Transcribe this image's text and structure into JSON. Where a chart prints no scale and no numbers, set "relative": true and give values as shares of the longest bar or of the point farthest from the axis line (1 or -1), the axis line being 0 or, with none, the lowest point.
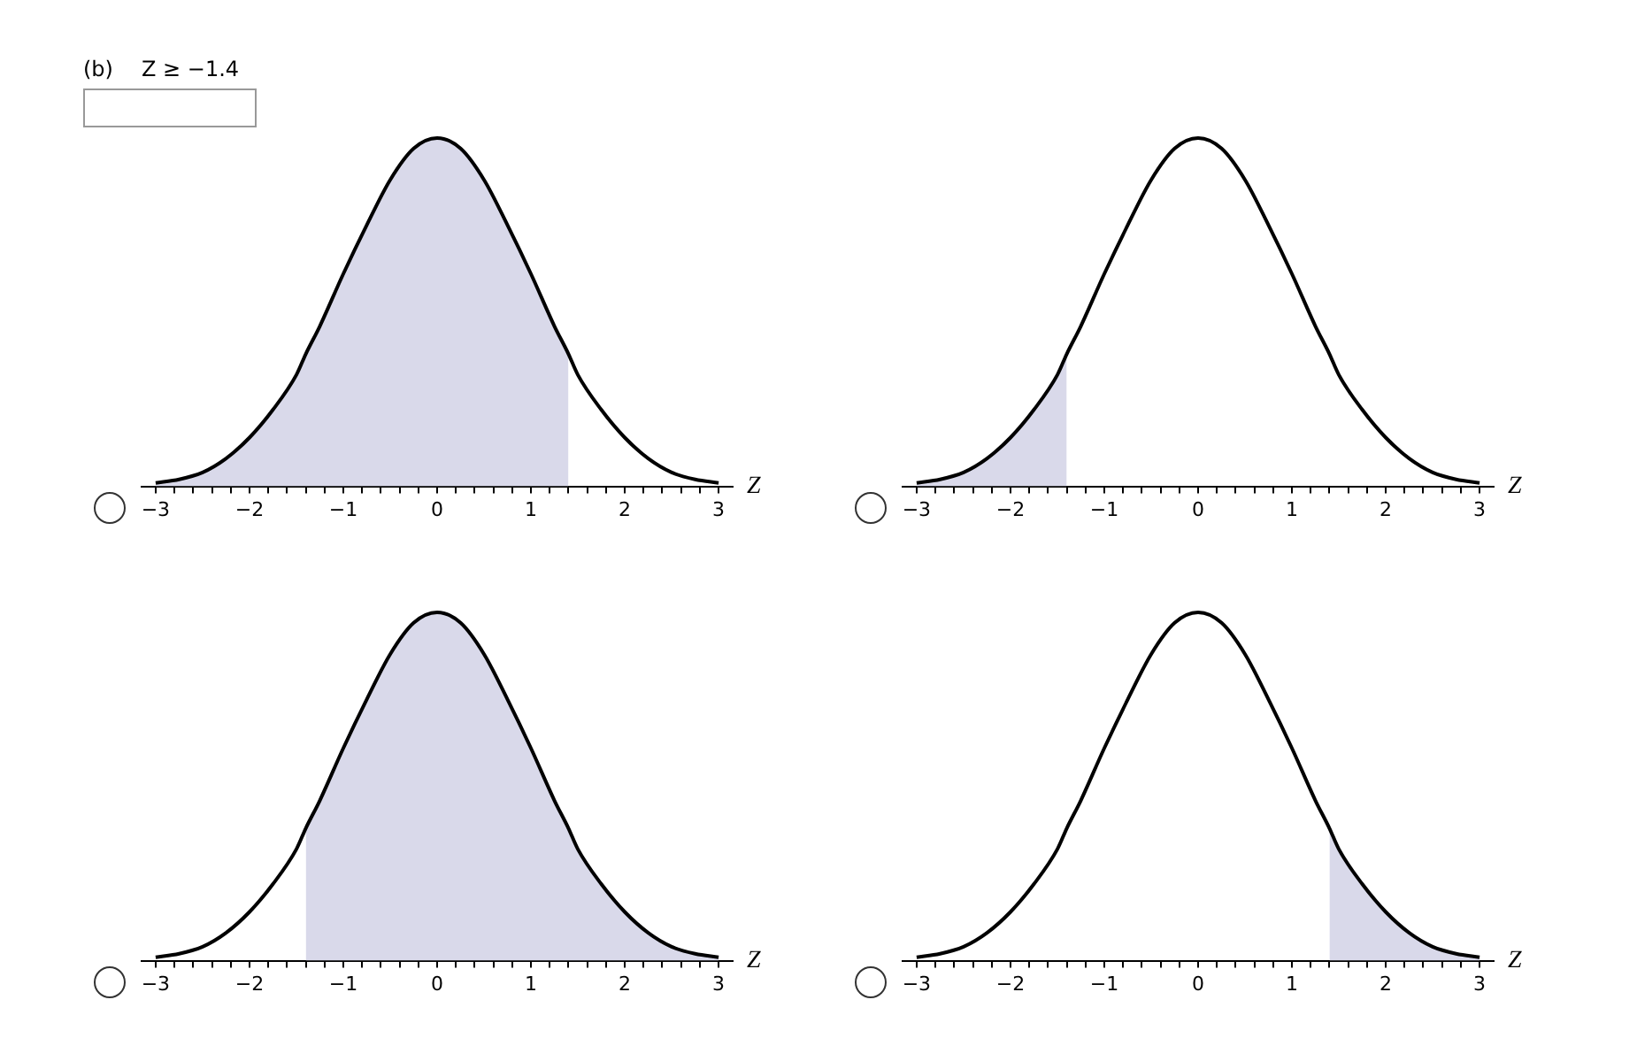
{
  "chart_data": [
    {
      "type": "line",
      "title": "(b)",
      "subtitle": "Z ≥ −1.4",
      "xlabel": "Z",
      "relative": true,
      "xlim": [
        -3.15,
        3.15
      ],
      "xticks": [
        {
          "value": -3,
          "label": "−3"
        },
        {
          "value": -2.8,
          "label": null
        },
        {
          "value": -2.6,
          "label": null
        },
        {
          "value": -2.4,
          "label": null
        },
        {
          "value": -2.2,
          "label": null
        },
        {
          "value": -2,
          "label": "−2"
        },
        {
          "value": -1.8,
          "label": null
        },
        {
          "value": -1.6,
          "label": null
        },
        {
          "value": -1.4,
          "label": null
        },
        {
          "value": -1.2,
          "label": null
        },
        {
          "value": -1,
          "label": "−1"
        },
        {
          "value": -0.8,
          "label": null
        },
        {
          "value": -0.6,
          "label": null
        },
        {
          "value": -0.4,
          "label": null
        },
        {
          "value": -0.2,
          "label": null
        },
        0,
        {
          "value": 0.2,
          "label": null
        },
        {
          "value": 0.4,
          "label": null
        },
        {
          "value": 0.6,
          "label": null
        },
        {
          "value": 0.8,
          "label": null
        },
        1,
        {
          "value": 1.2,
          "label": null
        },
        {
          "value": 1.4,
          "label": null
        },
        {
          "value": 1.6,
          "label": null
        },
        {
          "value": 1.8,
          "label": null
        },
        2,
        {
          "value": 2.2,
          "label": null
        },
        {
          "value": 2.4,
          "label": null
        },
        {
          "value": 2.6,
          "label": null
        },
        {
          "value": 2.8,
          "label": null
        },
        3
      ],
      "x": [
        -3,
        -2.75,
        -2.5,
        -2.25,
        -2,
        -1.75,
        -1.5,
        -1.4,
        -1.25,
        -1,
        -0.75,
        -0.5,
        -0.25,
        0,
        0.25,
        0.5,
        0.75,
        1,
        1.25,
        1.4,
        1.5,
        1.75,
        2,
        2.25,
        2.5,
        2.75,
        3
      ],
      "series": [
        {
          "type": "area",
          "color": "#d9d9ea",
          "values": [
            0.01,
            0.02,
            0.04,
            0.08,
            0.14,
            0.22,
            0.32,
            0.38,
            0.46,
            0.61,
            0.75,
            0.88,
            0.97,
            1,
            0.97,
            0.88,
            0.75,
            0.61,
            0.46,
            0.38,
            null,
            null,
            null,
            null,
            null,
            null,
            null
          ]
        },
        {
          "type": "line",
          "color": "#000000",
          "values": [
            0.01,
            0.02,
            0.04,
            0.08,
            0.14,
            0.22,
            0.32,
            0.38,
            0.46,
            0.61,
            0.75,
            0.88,
            0.97,
            1,
            0.97,
            0.88,
            0.75,
            0.61,
            0.46,
            0.38,
            0.32,
            0.22,
            0.14,
            0.08,
            0.04,
            0.02,
            0.01
          ]
        }
      ]
    },
    {
      "type": "line",
      "xlabel": "Z",
      "relative": true,
      "xlim": [
        -3.15,
        3.15
      ],
      "xticks": [
        {
          "value": -3,
          "label": "−3"
        },
        {
          "value": -2.8,
          "label": null
        },
        {
          "value": -2.6,
          "label": null
        },
        {
          "value": -2.4,
          "label": null
        },
        {
          "value": -2.2,
          "label": null
        },
        {
          "value": -2,
          "label": "−2"
        },
        {
          "value": -1.8,
          "label": null
        },
        {
          "value": -1.6,
          "label": null
        },
        {
          "value": -1.4,
          "label": null
        },
        {
          "value": -1.2,
          "label": null
        },
        {
          "value": -1,
          "label": "−1"
        },
        {
          "value": -0.8,
          "label": null
        },
        {
          "value": -0.6,
          "label": null
        },
        {
          "value": -0.4,
          "label": null
        },
        {
          "value": -0.2,
          "label": null
        },
        0,
        {
          "value": 0.2,
          "label": null
        },
        {
          "value": 0.4,
          "label": null
        },
        {
          "value": 0.6,
          "label": null
        },
        {
          "value": 0.8,
          "label": null
        },
        1,
        {
          "value": 1.2,
          "label": null
        },
        {
          "value": 1.4,
          "label": null
        },
        {
          "value": 1.6,
          "label": null
        },
        {
          "value": 1.8,
          "label": null
        },
        2,
        {
          "value": 2.2,
          "label": null
        },
        {
          "value": 2.4,
          "label": null
        },
        {
          "value": 2.6,
          "label": null
        },
        {
          "value": 2.8,
          "label": null
        },
        3
      ],
      "x": [
        -3,
        -2.75,
        -2.5,
        -2.25,
        -2,
        -1.75,
        -1.5,
        -1.4,
        -1.25,
        -1,
        -0.75,
        -0.5,
        -0.25,
        0,
        0.25,
        0.5,
        0.75,
        1,
        1.25,
        1.4,
        1.5,
        1.75,
        2,
        2.25,
        2.5,
        2.75,
        3
      ],
      "series": [
        {
          "type": "area",
          "color": "#d9d9ea",
          "values": [
            0.01,
            0.02,
            0.04,
            0.08,
            0.14,
            0.22,
            0.32,
            0.38,
            null,
            null,
            null,
            null,
            null,
            null,
            null,
            null,
            null,
            null,
            null,
            null,
            null,
            null,
            null,
            null,
            null,
            null,
            null
          ]
        },
        {
          "type": "line",
          "color": "#000000",
          "values": [
            0.01,
            0.02,
            0.04,
            0.08,
            0.14,
            0.22,
            0.32,
            0.38,
            0.46,
            0.61,
            0.75,
            0.88,
            0.97,
            1,
            0.97,
            0.88,
            0.75,
            0.61,
            0.46,
            0.38,
            0.32,
            0.22,
            0.14,
            0.08,
            0.04,
            0.02,
            0.01
          ]
        }
      ]
    },
    {
      "type": "line",
      "xlabel": "Z",
      "relative": true,
      "xlim": [
        -3.15,
        3.15
      ],
      "xticks": [
        {
          "value": -3,
          "label": "−3"
        },
        {
          "value": -2.8,
          "label": null
        },
        {
          "value": -2.6,
          "label": null
        },
        {
          "value": -2.4,
          "label": null
        },
        {
          "value": -2.2,
          "label": null
        },
        {
          "value": -2,
          "label": "−2"
        },
        {
          "value": -1.8,
          "label": null
        },
        {
          "value": -1.6,
          "label": null
        },
        {
          "value": -1.4,
          "label": null
        },
        {
          "value": -1.2,
          "label": null
        },
        {
          "value": -1,
          "label": "−1"
        },
        {
          "value": -0.8,
          "label": null
        },
        {
          "value": -0.6,
          "label": null
        },
        {
          "value": -0.4,
          "label": null
        },
        {
          "value": -0.2,
          "label": null
        },
        0,
        {
          "value": 0.2,
          "label": null
        },
        {
          "value": 0.4,
          "label": null
        },
        {
          "value": 0.6,
          "label": null
        },
        {
          "value": 0.8,
          "label": null
        },
        1,
        {
          "value": 1.2,
          "label": null
        },
        {
          "value": 1.4,
          "label": null
        },
        {
          "value": 1.6,
          "label": null
        },
        {
          "value": 1.8,
          "label": null
        },
        2,
        {
          "value": 2.2,
          "label": null
        },
        {
          "value": 2.4,
          "label": null
        },
        {
          "value": 2.6,
          "label": null
        },
        {
          "value": 2.8,
          "label": null
        },
        3
      ],
      "x": [
        -3,
        -2.75,
        -2.5,
        -2.25,
        -2,
        -1.75,
        -1.5,
        -1.4,
        -1.25,
        -1,
        -0.75,
        -0.5,
        -0.25,
        0,
        0.25,
        0.5,
        0.75,
        1,
        1.25,
        1.4,
        1.5,
        1.75,
        2,
        2.25,
        2.5,
        2.75,
        3
      ],
      "series": [
        {
          "type": "area",
          "color": "#d9d9ea",
          "values": [
            null,
            null,
            null,
            null,
            null,
            null,
            null,
            0.38,
            0.46,
            0.61,
            0.75,
            0.88,
            0.97,
            1,
            0.97,
            0.88,
            0.75,
            0.61,
            0.46,
            0.38,
            0.32,
            0.22,
            0.14,
            0.08,
            0.04,
            0.02,
            0.01
          ]
        },
        {
          "type": "line",
          "color": "#000000",
          "values": [
            0.01,
            0.02,
            0.04,
            0.08,
            0.14,
            0.22,
            0.32,
            0.38,
            0.46,
            0.61,
            0.75,
            0.88,
            0.97,
            1,
            0.97,
            0.88,
            0.75,
            0.61,
            0.46,
            0.38,
            0.32,
            0.22,
            0.14,
            0.08,
            0.04,
            0.02,
            0.01
          ]
        }
      ]
    },
    {
      "type": "line",
      "xlabel": "Z",
      "relative": true,
      "xlim": [
        -3.15,
        3.15
      ],
      "xticks": [
        {
          "value": -3,
          "label": "−3"
        },
        {
          "value": -2.8,
          "label": null
        },
        {
          "value": -2.6,
          "label": null
        },
        {
          "value": -2.4,
          "label": null
        },
        {
          "value": -2.2,
          "label": null
        },
        {
          "value": -2,
          "label": "−2"
        },
        {
          "value": -1.8,
          "label": null
        },
        {
          "value": -1.6,
          "label": null
        },
        {
          "value": -1.4,
          "label": null
        },
        {
          "value": -1.2,
          "label": null
        },
        {
          "value": -1,
          "label": "−1"
        },
        {
          "value": -0.8,
          "label": null
        },
        {
          "value": -0.6,
          "label": null
        },
        {
          "value": -0.4,
          "label": null
        },
        {
          "value": -0.2,
          "label": null
        },
        0,
        {
          "value": 0.2,
          "label": null
        },
        {
          "value": 0.4,
          "label": null
        },
        {
          "value": 0.6,
          "label": null
        },
        {
          "value": 0.8,
          "label": null
        },
        1,
        {
          "value": 1.2,
          "label": null
        },
        {
          "value": 1.4,
          "label": null
        },
        {
          "value": 1.6,
          "label": null
        },
        {
          "value": 1.8,
          "label": null
        },
        2,
        {
          "value": 2.2,
          "label": null
        },
        {
          "value": 2.4,
          "label": null
        },
        {
          "value": 2.6,
          "label": null
        },
        {
          "value": 2.8,
          "label": null
        },
        3
      ],
      "x": [
        -3,
        -2.75,
        -2.5,
        -2.25,
        -2,
        -1.75,
        -1.5,
        -1.4,
        -1.25,
        -1,
        -0.75,
        -0.5,
        -0.25,
        0,
        0.25,
        0.5,
        0.75,
        1,
        1.25,
        1.4,
        1.5,
        1.75,
        2,
        2.25,
        2.5,
        2.75,
        3
      ],
      "series": [
        {
          "type": "area",
          "color": "#d9d9ea",
          "values": [
            null,
            null,
            null,
            null,
            null,
            null,
            null,
            null,
            null,
            null,
            null,
            null,
            null,
            null,
            null,
            null,
            null,
            null,
            null,
            0.38,
            0.32,
            0.22,
            0.14,
            0.08,
            0.04,
            0.02,
            0.01
          ]
        },
        {
          "type": "line",
          "color": "#000000",
          "values": [
            0.01,
            0.02,
            0.04,
            0.08,
            0.14,
            0.22,
            0.32,
            0.38,
            0.46,
            0.61,
            0.75,
            0.88,
            0.97,
            1,
            0.97,
            0.88,
            0.75,
            0.61,
            0.46,
            0.38,
            0.32,
            0.22,
            0.14,
            0.08,
            0.04,
            0.02,
            0.01
          ]
        }
      ]
    }
  ]
}
